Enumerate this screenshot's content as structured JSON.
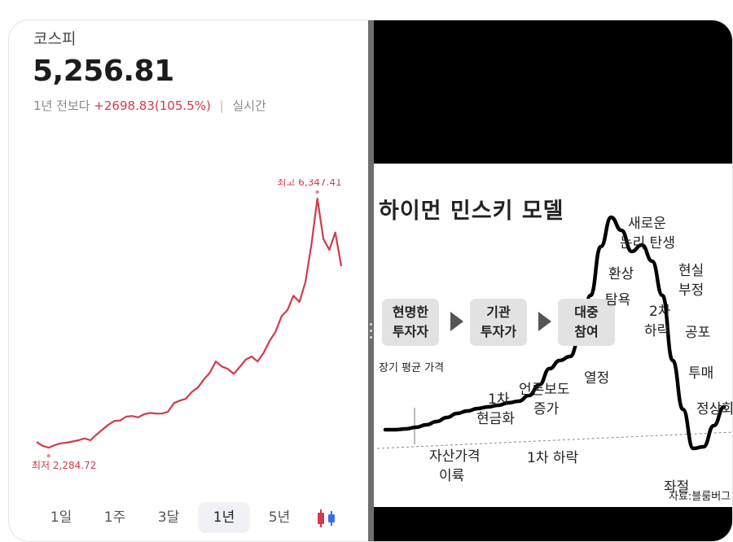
{
  "stock": {
    "name": "코스피",
    "price": "5,256.81",
    "period_label": "1년 전보다",
    "change": "+2698.83(105.5%)",
    "realtime": "실시간"
  },
  "chart_data": [
    {
      "type": "line",
      "title": "",
      "series": [
        {
          "values": [
            2420,
            2360,
            2330,
            2370,
            2400,
            2410,
            2430,
            2450,
            2480,
            2450,
            2540,
            2620,
            2700,
            2760,
            2770,
            2830,
            2840,
            2820,
            2870,
            2890,
            2880,
            2880,
            2910,
            3050,
            3090,
            3120,
            3230,
            3300,
            3430,
            3540,
            3720,
            3640,
            3600,
            3520,
            3630,
            3750,
            3800,
            3720,
            3860,
            4050,
            4200,
            4450,
            4550,
            4780,
            4680,
            5000,
            5600,
            6347.41,
            5700,
            5520,
            5800,
            5256.81
          ],
          "color": "#d23a4d"
        }
      ],
      "annotations": {
        "high_label": "최고 6,347.41",
        "low_label": "최저 2,284.72"
      },
      "high_value": 6347.41,
      "low_value": 2284.72,
      "ylim": [
        2200,
        6400
      ],
      "grid": false,
      "legend": "none"
    },
    {
      "type": "line",
      "title": "하이먼 민스키 모델",
      "series": [
        {
          "values": [
            35,
            35,
            36,
            38,
            41,
            45,
            50,
            55,
            58,
            61,
            63,
            65,
            68,
            70,
            77,
            90,
            110,
            120,
            125,
            150,
            200,
            260,
            296,
            280,
            254,
            262,
            242,
            200,
            120,
            60,
            12,
            14,
            40,
            63
          ],
          "color": "#000000"
        }
      ],
      "grid": false,
      "legend": "none"
    }
  ],
  "tabs": [
    "1일",
    "1주",
    "3달",
    "1년",
    "5년"
  ],
  "active_tab": "1년",
  "icons": {
    "chart_type": "candlestick-icon"
  },
  "colors": {
    "up": "#d23a4d",
    "candle_blue": "#3b6fe0"
  },
  "minsky": {
    "stages": [
      {
        "line1": "현명한",
        "line2": "투자자"
      },
      {
        "line1": "기관",
        "line2": "투자가"
      },
      {
        "line1": "대중",
        "line2": "참여"
      }
    ],
    "labels": {
      "long_term_avg": "장기 평균 가격",
      "asset_price_1": "자산가격",
      "asset_price_2": "이륙",
      "first_cash_1": "1차",
      "first_cash_2": "현금화",
      "media_1": "언론보도",
      "media_2": "증가",
      "first_drop": "1차 하락",
      "enthusiasm": "열정",
      "greed": "탐욕",
      "delusion": "환상",
      "new_paradigm_1": "새로운",
      "new_paradigm_2": "논리 탄생",
      "second_drop_1": "2차",
      "second_drop_2": "하락",
      "denial_1": "현실",
      "denial_2": "부정",
      "fear": "공포",
      "capitulation": "투매",
      "despair": "좌절",
      "normalization": "정상화",
      "source": "자료:블룸버그"
    }
  }
}
